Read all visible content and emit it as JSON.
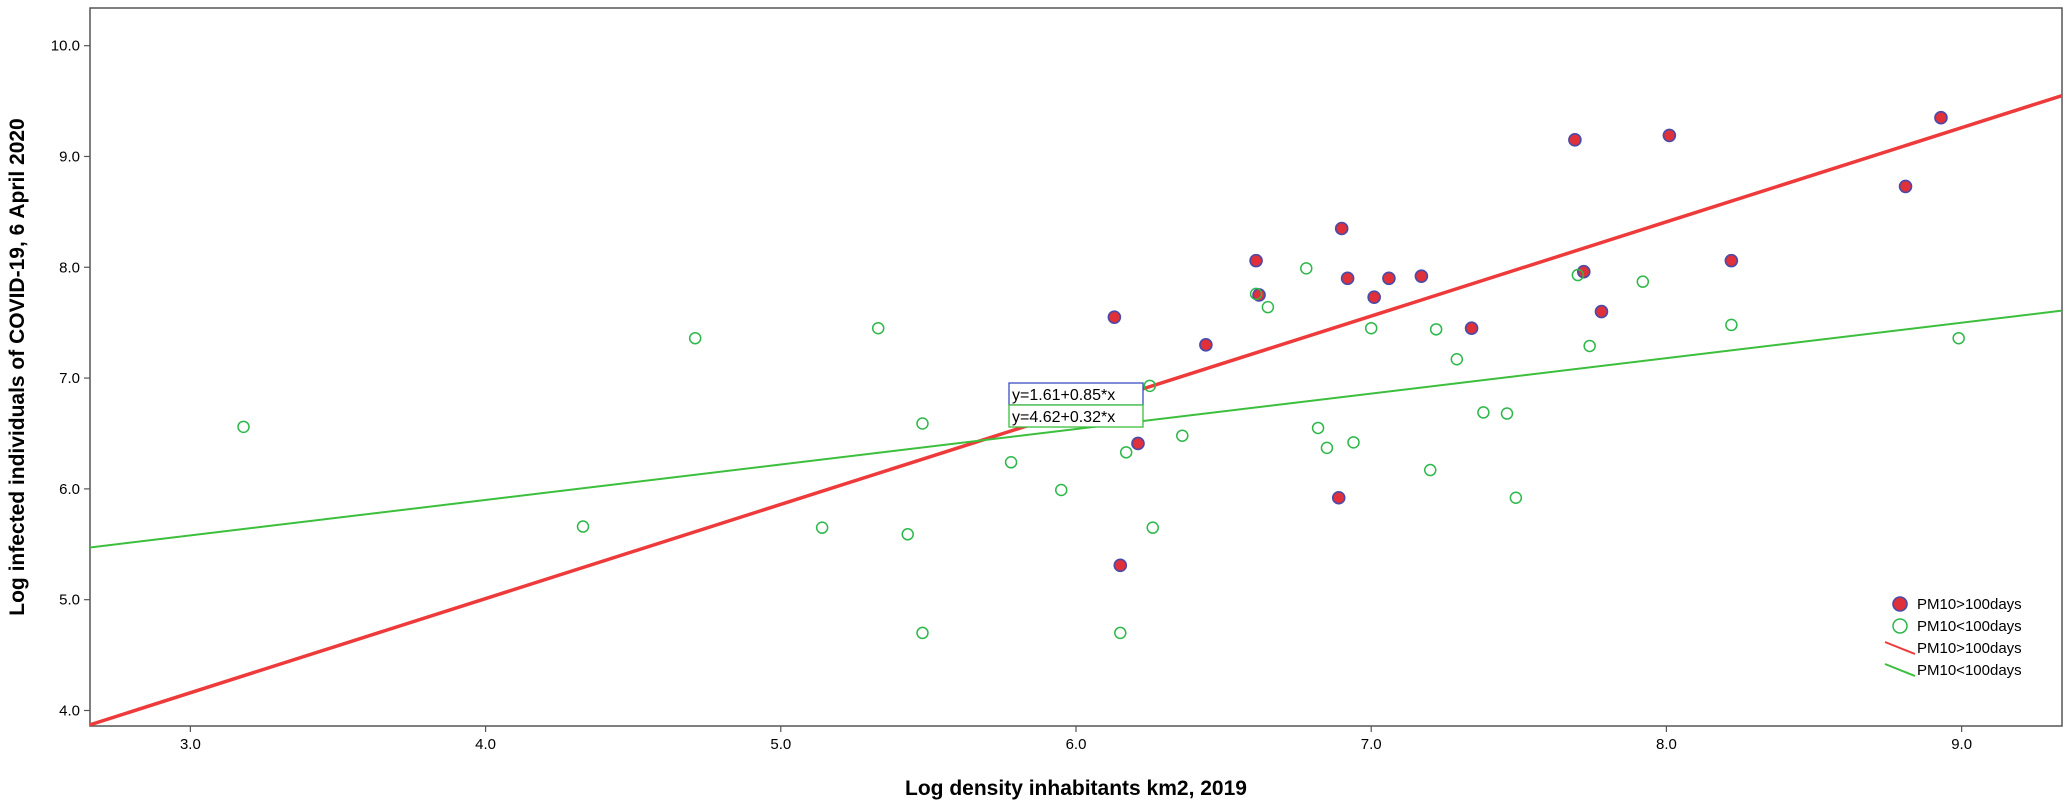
{
  "chart_data": {
    "type": "scatter",
    "title": "",
    "xlabel": "Log density inhabitants km2, 2019",
    "ylabel": "Log infected individuals of COVID-19, 6 April 2020",
    "xlim": [
      2.66,
      9.34
    ],
    "ylim": [
      3.86,
      10.34
    ],
    "xticks": [
      3.0,
      4.0,
      5.0,
      6.0,
      7.0,
      8.0,
      9.0
    ],
    "yticks": [
      4.0,
      5.0,
      6.0,
      7.0,
      8.0,
      9.0,
      10.0
    ],
    "xtick_labels": [
      "3.0",
      "4.0",
      "5.0",
      "6.0",
      "7.0",
      "8.0",
      "9.0"
    ],
    "ytick_labels": [
      "4.0",
      "5.0",
      "6.0",
      "7.0",
      "8.0",
      "9.0",
      "10.0"
    ],
    "grid": false,
    "legend_position": "bottom-right",
    "series": [
      {
        "name": "PM10>100days",
        "marker": "filled-circle",
        "fill": "#e0303a",
        "edge": "#4a4aa8",
        "points": [
          [
            6.13,
            7.55
          ],
          [
            6.15,
            5.31
          ],
          [
            6.21,
            6.41
          ],
          [
            6.44,
            7.3
          ],
          [
            6.61,
            8.06
          ],
          [
            6.62,
            7.75
          ],
          [
            6.9,
            8.35
          ],
          [
            6.89,
            5.92
          ],
          [
            6.92,
            7.9
          ],
          [
            7.01,
            7.73
          ],
          [
            7.06,
            7.9
          ],
          [
            7.17,
            7.92
          ],
          [
            7.34,
            7.45
          ],
          [
            7.69,
            9.15
          ],
          [
            7.72,
            7.96
          ],
          [
            7.78,
            7.6
          ],
          [
            8.01,
            9.19
          ],
          [
            8.22,
            8.06
          ],
          [
            8.81,
            8.73
          ],
          [
            8.93,
            9.35
          ]
        ]
      },
      {
        "name": "PM10<100days",
        "marker": "open-circle",
        "fill": "none",
        "edge": "#2db84a",
        "points": [
          [
            3.18,
            6.56
          ],
          [
            4.33,
            5.66
          ],
          [
            4.71,
            7.36
          ],
          [
            5.14,
            5.65
          ],
          [
            5.33,
            7.45
          ],
          [
            5.43,
            5.59
          ],
          [
            5.48,
            6.59
          ],
          [
            5.48,
            4.7
          ],
          [
            5.78,
            6.24
          ],
          [
            5.95,
            5.99
          ],
          [
            6.15,
            4.7
          ],
          [
            6.17,
            6.33
          ],
          [
            6.25,
            6.93
          ],
          [
            6.26,
            5.65
          ],
          [
            6.36,
            6.48
          ],
          [
            6.61,
            7.76
          ],
          [
            6.65,
            7.64
          ],
          [
            6.78,
            7.99
          ],
          [
            6.82,
            6.55
          ],
          [
            6.85,
            6.37
          ],
          [
            6.94,
            6.42
          ],
          [
            7.0,
            7.45
          ],
          [
            7.2,
            6.17
          ],
          [
            7.22,
            7.44
          ],
          [
            7.29,
            7.17
          ],
          [
            7.38,
            6.69
          ],
          [
            7.46,
            6.68
          ],
          [
            7.49,
            5.92
          ],
          [
            7.7,
            7.93
          ],
          [
            7.74,
            7.29
          ],
          [
            7.92,
            7.87
          ],
          [
            8.22,
            7.48
          ],
          [
            8.99,
            7.36
          ]
        ]
      }
    ],
    "fit_lines": [
      {
        "name": "PM10>100days",
        "intercept": 1.61,
        "slope": 0.85,
        "color": "#ee3a3a",
        "equation": "y=1.61+0.85*x"
      },
      {
        "name": "PM10<100days",
        "intercept": 4.62,
        "slope": 0.32,
        "color": "#3cbf3c",
        "equation": "y=4.62+0.32*x"
      }
    ],
    "legend": [
      {
        "label": "PM10>100days",
        "kind": "filled-circle"
      },
      {
        "label": "PM10<100days",
        "kind": "open-circle"
      },
      {
        "label": "PM10>100days",
        "kind": "red-line"
      },
      {
        "label": "PM10<100days",
        "kind": "green-line"
      }
    ]
  }
}
